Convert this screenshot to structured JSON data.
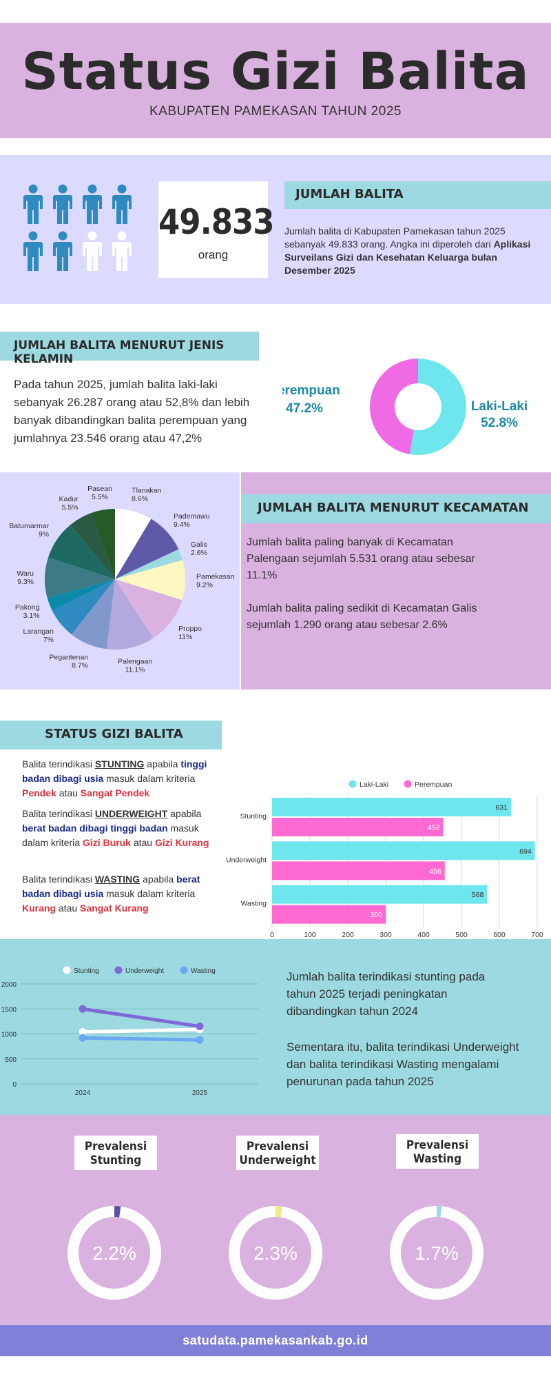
{
  "header": {
    "title": "Status Gizi Balita",
    "subtitle": "KABUPATEN PAMEKASAN TAHUN 2025"
  },
  "jumlah": {
    "count": "49.833",
    "unit": "orang",
    "heading": "JUMLAH BALITA",
    "desc_normal": "Jumlah balita di Kabupaten Pamekasan tahun 2025 sebanyak 49.833 orang. Angka ini diperoleh dari",
    "desc_bold": "Aplikasi Surveilans Gizi dan Kesehatan Keluarga bulan Desember 2025",
    "icon_colors": {
      "filled": "#2f8ac0",
      "empty": "#ffffff"
    },
    "icons": [
      "person-icon",
      "person-icon",
      "person-icon",
      "person-icon",
      "person-icon",
      "person-icon",
      "person-outline-icon",
      "person-outline-icon"
    ]
  },
  "gender": {
    "heading": "JUMLAH BALITA MENURUT JENIS KELAMIN",
    "paragraph": "Pada tahun 2025, jumlah balita laki-laki sebanyak 26.287 orang atau 52,8% dan lebih banyak dibandingkan balita perempuan yang jumlahnya 23.546 orang atau 47,2%",
    "label_f_name": "Perempuan",
    "label_f_value": "47.2%",
    "label_m_name": "Laki-Laki",
    "label_m_value": "52.8%"
  },
  "kecamatan": {
    "heading": "JUMLAH BALITA MENURUT KECAMATAN",
    "p1": "Jumlah balita paling banyak di Kecamatan Palengaan sejumlah 5.531 orang atau sebesar 11.1%",
    "p2": "Jumlah balita paling sedikit di Kecamatan Galis sejumlah 1.290 orang atau sebesar 2.6%"
  },
  "status": {
    "heading": "STATUS GIZI BALITA",
    "stunting": {
      "pre": "Balita terindikasi ",
      "term": "STUNTING",
      "mid": " apabila ",
      "metric": "tinggi badan dibagi usia",
      "post": " masuk dalam kriteria ",
      "c1": "Pendek",
      "or": " atau ",
      "c2": "Sangat Pendek"
    },
    "underweight": {
      "pre": "Balita terindikasi ",
      "term": "UNDERWEIGHT",
      "mid": " apabila ",
      "metric": "berat badan dibagi tinggi badan",
      "post": " masuk dalam kriteria ",
      "c1": "Gizi Buruk",
      "or": " atau ",
      "c2": "Gizi Kurang"
    },
    "wasting": {
      "pre": "Balita terindikasi ",
      "term": "WASTING",
      "mid": " apabila ",
      "metric": "berat badan dibagi usia",
      "post": " masuk dalam kriteria ",
      "c1": "Kurang",
      "or": " atau ",
      "c2": "Sangat Kurang"
    }
  },
  "trend": {
    "p1": "Jumlah balita terindikasi stunting pada tahun 2025 terjadi peningkatan dibandingkan tahun 2024",
    "p2": "Sementara itu, balita terindikasi Underweight dan balita terindikasi Wasting mengalami penurunan pada tahun 2025"
  },
  "prevalensi": [
    {
      "label_l1": "Prevalensi",
      "label_l2": "Stunting",
      "value": "2.2%",
      "pct": 2.2,
      "color": "#5a52a8"
    },
    {
      "label_l1": "Prevalensi",
      "label_l2": "Underweight",
      "value": "2.3%",
      "pct": 2.3,
      "color": "#f3e88a"
    },
    {
      "label_l1": "Prevalensi",
      "label_l2": "Wasting",
      "value": "1.7%",
      "pct": 1.7,
      "color": "#9dd9e1"
    }
  ],
  "footer": {
    "url": "satudata.pamekasankab.go.id"
  },
  "chart_data": [
    {
      "type": "pie",
      "subtype": "donut",
      "labels": [
        "Laki-Laki",
        "Perempuan"
      ],
      "values": [
        52.8,
        47.2
      ],
      "colors": [
        "#6ee6ee",
        "#f06ae6"
      ]
    },
    {
      "type": "pie",
      "labels": [
        "Tlanakan",
        "Pademawu",
        "Galis",
        "Pamekasan",
        "Proppo",
        "Palengaan",
        "Pegantenan",
        "Larangan",
        "Pakong",
        "Waru",
        "Batumarmar",
        "Kadur",
        "Pasean"
      ],
      "values": [
        8.6,
        9.4,
        2.6,
        9.2,
        11,
        11.1,
        8.7,
        7,
        3.1,
        9.3,
        9,
        5.5,
        5.5
      ],
      "value_labels": [
        "8.6%",
        "9.4%",
        "2.6%",
        "9.2%",
        "11%",
        "11.1%",
        "8.7%",
        "7%",
        "3.1%",
        "9.3%",
        "9%",
        "5.5%",
        "5.5%"
      ],
      "colors": [
        "#ffffff",
        "#5e5aa8",
        "#9dd9e1",
        "#fdf7c2",
        "#dab2df",
        "#b3a9df",
        "#8098cc",
        "#2f8ac0",
        "#0a8aa8",
        "#3c7a86",
        "#1e6a62",
        "#2a5a44",
        "#255a26"
      ]
    },
    {
      "type": "bar",
      "orientation": "horizontal",
      "categories": [
        "Stunting",
        "Underweight",
        "Wasting"
      ],
      "series": [
        {
          "name": "Laki-Laki",
          "values": [
            631,
            694,
            568
          ],
          "color": "#6ee6ee"
        },
        {
          "name": "Perempuan",
          "values": [
            452,
            456,
            300
          ],
          "color": "#ff6ad2"
        }
      ],
      "xlim": [
        0,
        700
      ],
      "xticks": [
        0,
        100,
        200,
        300,
        400,
        500,
        600,
        700
      ],
      "grid": true,
      "legend": "top"
    },
    {
      "type": "line",
      "x": [
        "2024",
        "2025"
      ],
      "series": [
        {
          "name": "Stunting",
          "values": [
            1040,
            1090
          ],
          "color": "#ffffff"
        },
        {
          "name": "Underweight",
          "values": [
            1500,
            1150
          ],
          "color": "#7e6ad6"
        },
        {
          "name": "Wasting",
          "values": [
            920,
            880
          ],
          "color": "#6aa8f2"
        }
      ],
      "ylim": [
        0,
        2000
      ],
      "yticks": [
        0,
        500,
        1000,
        1500,
        2000
      ],
      "grid": true,
      "legend": "top"
    }
  ]
}
